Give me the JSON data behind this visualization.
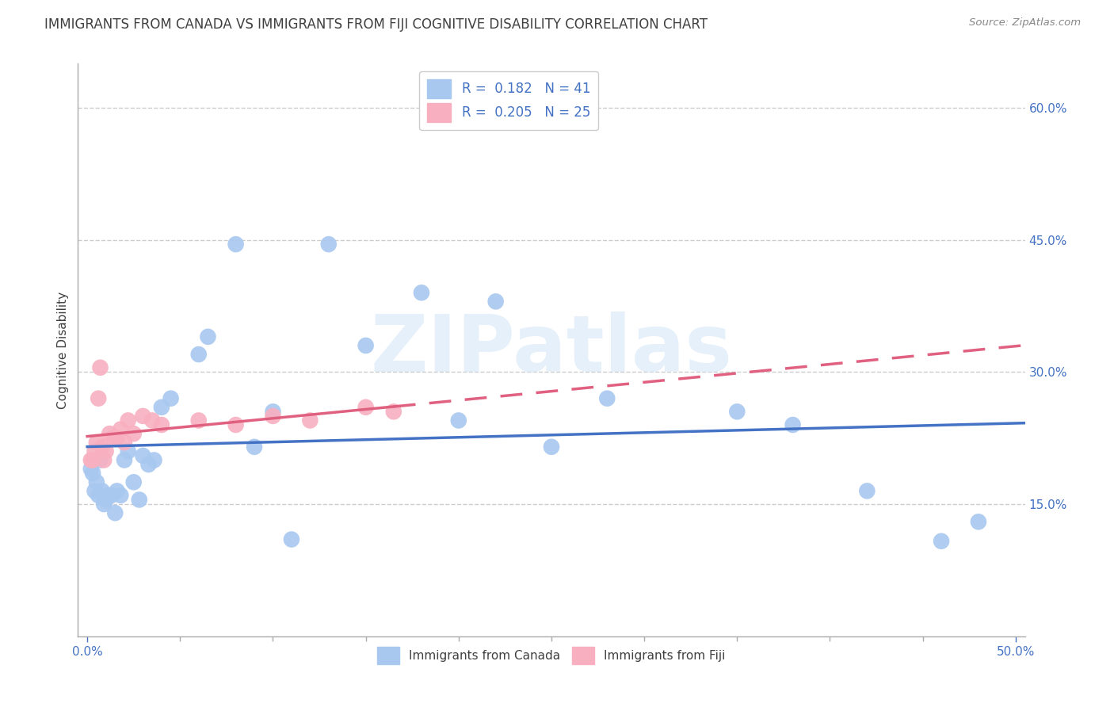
{
  "title": "IMMIGRANTS FROM CANADA VS IMMIGRANTS FROM FIJI COGNITIVE DISABILITY CORRELATION CHART",
  "source": "Source: ZipAtlas.com",
  "xlabel_canada": "Immigrants from Canada",
  "xlabel_fiji": "Immigrants from Fiji",
  "ylabel": "Cognitive Disability",
  "xlim": [
    -0.005,
    0.505
  ],
  "ylim": [
    0.0,
    0.65
  ],
  "xtick_pos": [
    0.0,
    0.5
  ],
  "xtick_labels": [
    "0.0%",
    "50.0%"
  ],
  "yticks": [
    0.15,
    0.3,
    0.45,
    0.6
  ],
  "ytick_labels": [
    "15.0%",
    "30.0%",
    "45.0%",
    "60.0%"
  ],
  "legend_R_canada": "0.182",
  "legend_N_canada": "41",
  "legend_R_fiji": "0.205",
  "legend_N_fiji": "25",
  "canada_color": "#a8c8f0",
  "canada_line_color": "#4472c4",
  "fiji_color": "#f8b0c0",
  "fiji_line_color": "#e06080",
  "watermark": "ZIPatlas",
  "canada_x": [
    0.002,
    0.003,
    0.004,
    0.005,
    0.006,
    0.007,
    0.008,
    0.009,
    0.01,
    0.011,
    0.013,
    0.015,
    0.016,
    0.018,
    0.02,
    0.022,
    0.025,
    0.028,
    0.03,
    0.033,
    0.036,
    0.04,
    0.045,
    0.06,
    0.065,
    0.08,
    0.09,
    0.1,
    0.11,
    0.13,
    0.15,
    0.18,
    0.2,
    0.22,
    0.25,
    0.28,
    0.35,
    0.38,
    0.42,
    0.46,
    0.48
  ],
  "canada_y": [
    0.19,
    0.185,
    0.165,
    0.175,
    0.16,
    0.2,
    0.165,
    0.15,
    0.155,
    0.16,
    0.16,
    0.14,
    0.165,
    0.16,
    0.2,
    0.21,
    0.175,
    0.155,
    0.205,
    0.195,
    0.2,
    0.26,
    0.27,
    0.32,
    0.34,
    0.445,
    0.215,
    0.255,
    0.11,
    0.445,
    0.33,
    0.39,
    0.245,
    0.38,
    0.215,
    0.27,
    0.255,
    0.24,
    0.165,
    0.108,
    0.13
  ],
  "fiji_x": [
    0.002,
    0.003,
    0.004,
    0.005,
    0.006,
    0.007,
    0.008,
    0.009,
    0.01,
    0.012,
    0.014,
    0.016,
    0.018,
    0.02,
    0.022,
    0.025,
    0.03,
    0.035,
    0.04,
    0.06,
    0.08,
    0.1,
    0.12,
    0.15,
    0.165
  ],
  "fiji_y": [
    0.2,
    0.2,
    0.21,
    0.22,
    0.27,
    0.305,
    0.215,
    0.2,
    0.21,
    0.23,
    0.225,
    0.225,
    0.235,
    0.22,
    0.245,
    0.23,
    0.25,
    0.245,
    0.24,
    0.245,
    0.24,
    0.25,
    0.245,
    0.26,
    0.255
  ],
  "background_color": "#ffffff",
  "grid_color": "#cccccc",
  "axis_color": "#4472c4",
  "title_color": "#404040",
  "title_fontsize": 12,
  "label_fontsize": 11,
  "tick_fontsize": 11,
  "legend_fontsize": 12
}
